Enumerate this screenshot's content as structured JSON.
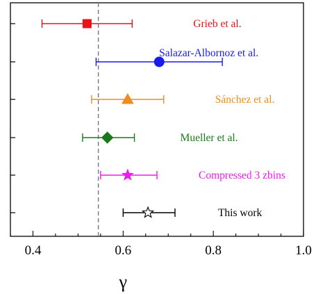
{
  "chart_data": {
    "type": "scatter",
    "subtype": "horizontal-error-bar",
    "title": "",
    "xlabel": "γ",
    "ylabel": "",
    "xlim": [
      0.35,
      1.0
    ],
    "x_ticks": [
      0.4,
      0.6,
      0.8,
      1.0
    ],
    "x_tick_labels": [
      "0.4",
      "0.6",
      "0.8",
      "1.0"
    ],
    "grid": false,
    "reference_line": {
      "x": 0.545,
      "style": "dashed",
      "color": "#777777"
    },
    "series": [
      {
        "name": "Grieb et al.",
        "value": 0.52,
        "err_low": 0.42,
        "err_high": 0.62,
        "marker": "square",
        "color": "#e8141c",
        "filled": true
      },
      {
        "name": "Salazar-Albornoz et al.",
        "value": 0.68,
        "err_low": 0.54,
        "err_high": 0.82,
        "marker": "circle",
        "color": "#1a1aee",
        "filled": true
      },
      {
        "name": "Sánchez et al.",
        "value": 0.61,
        "err_low": 0.53,
        "err_high": 0.69,
        "marker": "triangle",
        "color": "#f08c1e",
        "filled": true
      },
      {
        "name": "Mueller et al.",
        "value": 0.565,
        "err_low": 0.51,
        "err_high": 0.625,
        "marker": "diamond",
        "color": "#1a7a1a",
        "filled": true
      },
      {
        "name": "Compressed 3 zbins",
        "value": 0.61,
        "err_low": 0.55,
        "err_high": 0.675,
        "marker": "star",
        "color": "#ee1aee",
        "filled": true
      },
      {
        "name": "This work",
        "value": 0.655,
        "err_low": 0.6,
        "err_high": 0.715,
        "marker": "star",
        "color": "#000000",
        "filled": false
      }
    ]
  }
}
